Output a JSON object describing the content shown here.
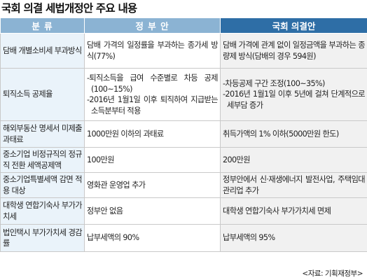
{
  "title": "국회 의결 세법개정안 주요 내용",
  "header": {
    "category": "분  류",
    "government": "정 부 안",
    "national": "국회 의결안"
  },
  "rows": [
    {
      "category": "담배 개별소비세 부과방식",
      "government": [
        "담배 가격의 일정률을 부과하는 종가세 방식(77%)"
      ],
      "national": [
        "담배 가격에 관계 없이 일정금액을 부과하는 종량제 방식(담배의 경우 594원)"
      ]
    },
    {
      "category": "퇴직소득 공제율",
      "government": [
        "-퇴직소득을 급여 수준별로 차등 공제(100~15%)",
        "-2016년 1월1일 이후 퇴직하여 지급받는 소득분부터 적용"
      ],
      "national": [
        "-차등공제 구간 조정(100~35%)",
        "-2016년 1월1일 이후 5년에 걸쳐 단계적으로 세부담 증가"
      ]
    },
    {
      "category": "해외부동산 명세서 미제출 과태료",
      "government": [
        "1000만원 이하의 과태료"
      ],
      "national": [
        "취득가액의 1% 이하(5000만원 한도)"
      ]
    },
    {
      "category": "중소기업 비정규직의 정규직 전환 세액공제액",
      "government": [
        "100만원"
      ],
      "national": [
        "200만원"
      ]
    },
    {
      "category": "중소기업특별세액 감면 적용 대상",
      "government": [
        "영화관 운영업 추가"
      ],
      "national": [
        "정부안에서 신·재생에너지 발전사업, 주택임대관리업 추가"
      ]
    },
    {
      "category": "대학생 연합기숙사 부가가치세",
      "government": [
        "정부안 없음"
      ],
      "national": [
        "대학생 연합기숙사 부가가치세 면제"
      ]
    },
    {
      "category": "법인택시 부가가치세 경감률",
      "government": [
        "납부세액의 90%"
      ],
      "national": [
        "납부세액의 95%"
      ]
    }
  ],
  "source": "<자료: 기획재정부>"
}
